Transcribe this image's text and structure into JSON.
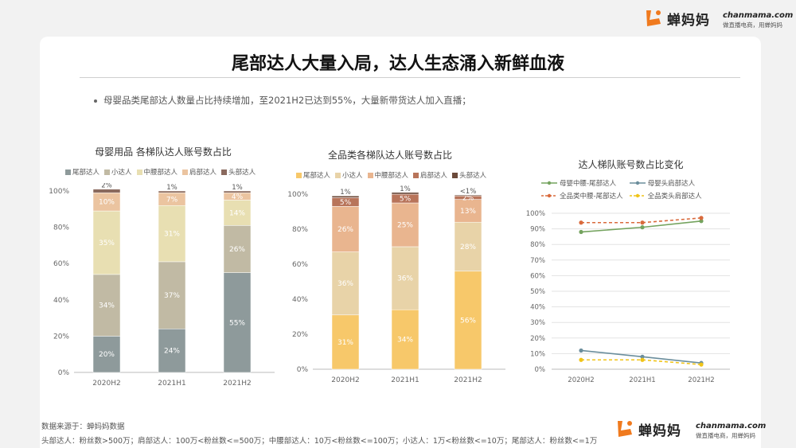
{
  "brand": {
    "name": "蝉妈妈",
    "site": "chanmama.com",
    "slogan": "做直播电商，用蝉妈妈"
  },
  "title": "尾部达人大量入局，达人生态涌入新鲜血液",
  "bullet": "母婴品类尾部达人数量占比持续增加，至2021H2已达到55%，大量新带货达人加入直播；",
  "footnotes": {
    "source": "数据来源于：蝉妈妈数据",
    "definitions": "头部达人：粉丝数>500万；肩部达人：100万<粉丝数<=500万；中腰部达人：10万<粉丝数<=100万；小达人：1万<粉丝数<=10万；尾部达人：粉丝数<=1万"
  },
  "colors": {
    "chart1": [
      "#8e9a9b",
      "#c1baa4",
      "#e8dfb2",
      "#ebc4a0",
      "#8a6a5e"
    ],
    "chart2": [
      "#f7c86a",
      "#e8d3a8",
      "#e9b58f",
      "#b8745a",
      "#6b4a3a"
    ],
    "chart3": [
      "#74a35e",
      "#6b8e9c",
      "#d96a3c",
      "#f0c419"
    ]
  },
  "chart_data": [
    {
      "type": "bar",
      "stacked": true,
      "title": "母婴用品 各梯队达人账号数占比",
      "categories": [
        "2020H2",
        "2021H1",
        "2021H2"
      ],
      "series": [
        {
          "name": "尾部达人",
          "values": [
            20,
            24,
            55
          ],
          "labels": [
            "20%",
            "24%",
            "55%"
          ]
        },
        {
          "name": "小达人",
          "values": [
            34,
            37,
            26
          ],
          "labels": [
            "34%",
            "37%",
            "26%"
          ]
        },
        {
          "name": "中腰部达人",
          "values": [
            35,
            31,
            14
          ],
          "labels": [
            "35%",
            "31%",
            "14%"
          ]
        },
        {
          "name": "肩部达人",
          "values": [
            10,
            7,
            4
          ],
          "labels": [
            "10%",
            "7%",
            "4%"
          ]
        },
        {
          "name": "头部达人",
          "values": [
            2,
            1,
            1
          ],
          "labels": [
            "2%",
            "1%",
            "1%"
          ]
        }
      ],
      "yticks": [
        "0%",
        "20%",
        "40%",
        "60%",
        "80%",
        "100%"
      ],
      "ylim": [
        0,
        100
      ],
      "legend": "top"
    },
    {
      "type": "bar",
      "stacked": true,
      "title": "全品类各梯队达人账号数占比",
      "categories": [
        "2020H2",
        "2021H1",
        "2021H2"
      ],
      "series": [
        {
          "name": "尾部达人",
          "values": [
            31,
            34,
            56
          ],
          "labels": [
            "31%",
            "34%",
            "56%"
          ]
        },
        {
          "name": "小达人",
          "values": [
            36,
            36,
            28
          ],
          "labels": [
            "36%",
            "36%",
            "28%"
          ]
        },
        {
          "name": "中腰部达人",
          "values": [
            26,
            25,
            13
          ],
          "labels": [
            "26%",
            "25%",
            "13%"
          ]
        },
        {
          "name": "肩部达人",
          "values": [
            5,
            5,
            2
          ],
          "labels": [
            "5%",
            "5%",
            "2%"
          ]
        },
        {
          "name": "头部达人",
          "values": [
            1,
            1,
            0.5
          ],
          "labels": [
            "1%",
            "1%",
            "<1%"
          ]
        }
      ],
      "yticks": [
        "0%",
        "20%",
        "40%",
        "60%",
        "80%",
        "100%"
      ],
      "ylim": [
        0,
        100
      ],
      "legend": "top"
    },
    {
      "type": "line",
      "title": "达人梯队账号数占比变化",
      "categories": [
        "2020H2",
        "2021H1",
        "2021H2"
      ],
      "series": [
        {
          "name": "母婴中腰-尾部达人",
          "values": [
            88,
            91,
            95
          ],
          "dashed": false
        },
        {
          "name": "母婴头肩部达人",
          "values": [
            12,
            8,
            4
          ],
          "dashed": false
        },
        {
          "name": "全品类中腰-尾部达人",
          "values": [
            94,
            94,
            97
          ],
          "dashed": true
        },
        {
          "name": "全品类头肩部达人",
          "values": [
            6,
            6,
            3
          ],
          "dashed": true
        }
      ],
      "yticks": [
        "0%",
        "10%",
        "20%",
        "30%",
        "40%",
        "50%",
        "60%",
        "70%",
        "80%",
        "90%",
        "100%"
      ],
      "ylim": [
        0,
        100
      ],
      "grid": true,
      "legend": "top"
    }
  ]
}
